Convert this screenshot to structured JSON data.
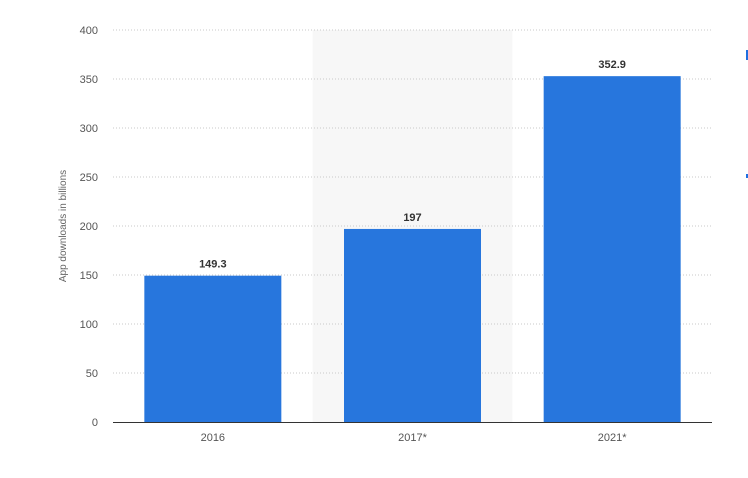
{
  "chart_data": {
    "type": "bar",
    "categories": [
      "2016",
      "2017*",
      "2021*"
    ],
    "values": [
      149.3,
      197,
      352.9
    ],
    "value_labels": [
      "149.3",
      "197",
      "352.9"
    ],
    "title": "",
    "xlabel": "",
    "ylabel": "App downloads in billions",
    "ylim": [
      0,
      400
    ],
    "yticks": [
      0,
      50,
      100,
      150,
      200,
      250,
      300,
      350,
      400
    ],
    "grid": true,
    "highlight_category": "2017*",
    "colors": {
      "bar": "#2776dd",
      "grid": "#c8c8c8",
      "highlight_band": "#f7f7f7",
      "axis": "#333333"
    }
  }
}
